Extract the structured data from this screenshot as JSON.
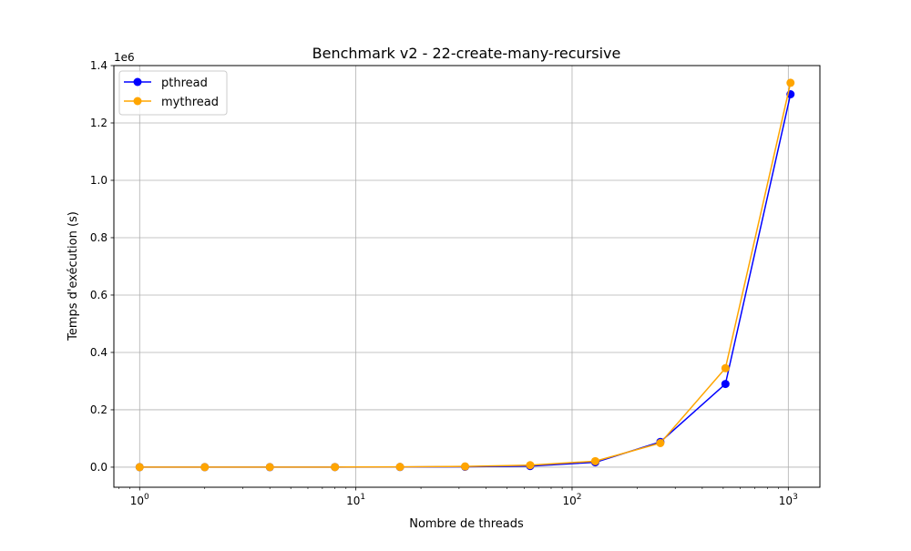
{
  "chart_data": {
    "type": "line",
    "title": "Benchmark v2 - 22-create-many-recursive",
    "xlabel": "Nombre de threads",
    "ylabel": "Temps d'exécution (s)",
    "y_offset_label": "1e6",
    "x_scale": "log",
    "xlim": [
      0.76,
      1400
    ],
    "ylim": [
      -70000,
      1400000
    ],
    "grid": true,
    "legend_position": "top-left",
    "x": [
      1,
      2,
      4,
      8,
      16,
      32,
      64,
      128,
      256,
      512,
      1024
    ],
    "x_ticks": [
      {
        "value": 1,
        "base": "10",
        "exp": "0"
      },
      {
        "value": 10,
        "base": "10",
        "exp": "1"
      },
      {
        "value": 100,
        "base": "10",
        "exp": "2"
      },
      {
        "value": 1000,
        "base": "10",
        "exp": "3"
      }
    ],
    "y_ticks": [
      {
        "value": 0,
        "label": "0.0"
      },
      {
        "value": 200000,
        "label": "0.2"
      },
      {
        "value": 400000,
        "label": "0.4"
      },
      {
        "value": 600000,
        "label": "0.6"
      },
      {
        "value": 800000,
        "label": "0.8"
      },
      {
        "value": 1000000,
        "label": "1.0"
      },
      {
        "value": 1200000,
        "label": "1.2"
      },
      {
        "value": 1400000,
        "label": "1.4"
      }
    ],
    "series": [
      {
        "name": "pthread",
        "color": "#0000ff",
        "values": [
          100,
          150,
          200,
          300,
          600,
          1500,
          4000,
          17000,
          88000,
          290000,
          1300000
        ]
      },
      {
        "name": "mythread",
        "color": "#ffa500",
        "values": [
          100,
          150,
          250,
          400,
          900,
          2500,
          7000,
          21000,
          84000,
          345000,
          1340000
        ]
      }
    ]
  }
}
